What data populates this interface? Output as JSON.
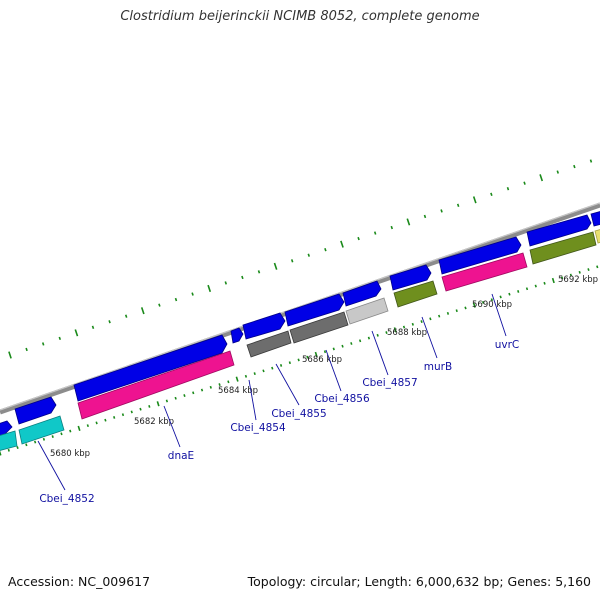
{
  "title": "Clostridium beijerinckii NCIMB 8052, complete genome",
  "footer": {
    "accession": "Accession: NC_009617",
    "summary": "Topology: circular; Length: 6,000,632 bp; Genes: 5,160"
  },
  "colors": {
    "cds_forward": "#0000e6",
    "backbone": "#8a8a8a",
    "tick": "#1a8a1a",
    "gene_label": "#1010a0",
    "cyan": "#10c8c8",
    "pink": "#ee1390",
    "gray_dark": "#6d6d6d",
    "gray_light": "#c8c8c8",
    "olive": "#6f8f1e",
    "yellow": "#e8e070"
  },
  "kbp_labels": [
    "5680 kbp",
    "5682 kbp",
    "5684 kbp",
    "5686 kbp",
    "5688 kbp",
    "5690 kbp",
    "5692 kbp"
  ],
  "gene_labels": [
    "Cbei_4852",
    "dnaE",
    "Cbei_4854",
    "Cbei_4855",
    "Cbei_4856",
    "Cbei_4857",
    "murB",
    "uvrC"
  ]
}
